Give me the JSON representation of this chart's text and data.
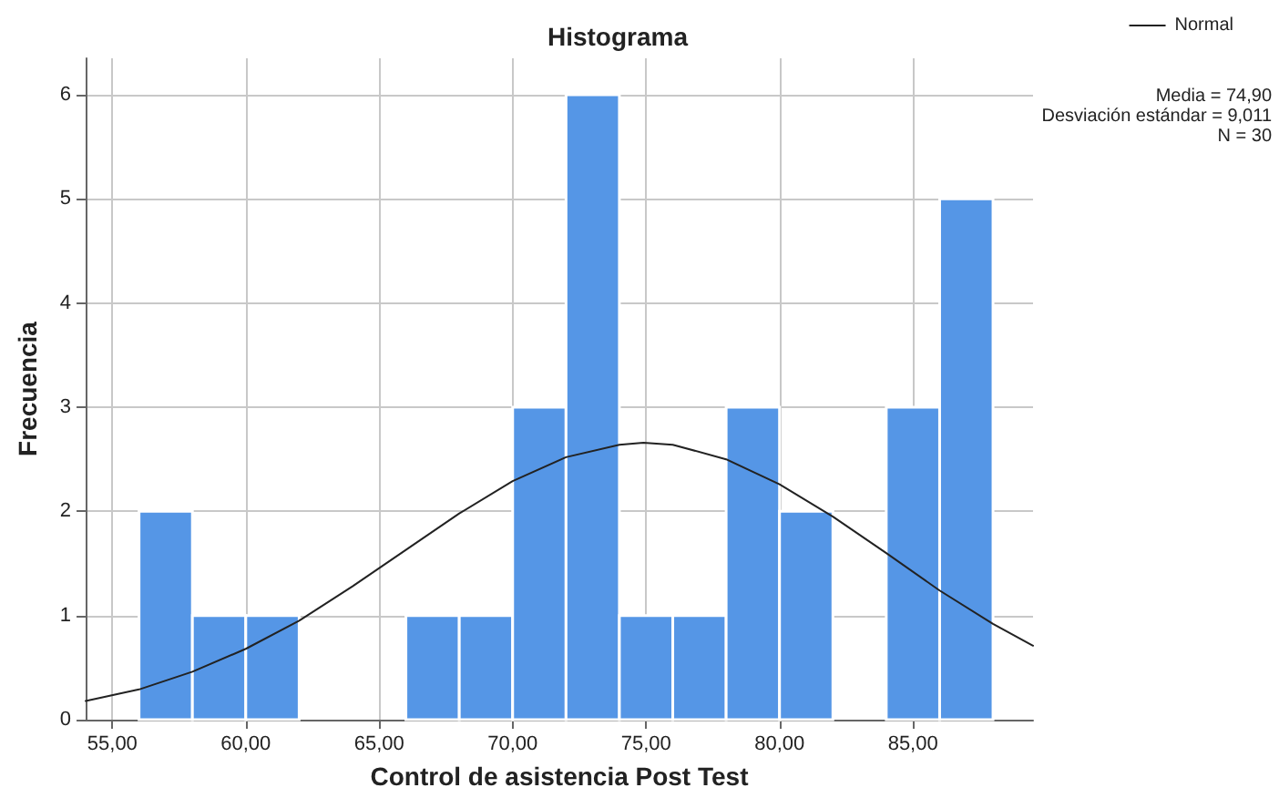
{
  "chart_data": {
    "type": "histogram",
    "title": "Histograma",
    "xlabel": "Control de asistencia Post Test",
    "ylabel": "Frecuencia",
    "annotations": [
      "Media = 74,90",
      "Desviación estándar = 9,011",
      "N = 30"
    ],
    "series": [
      {
        "type": "histogram",
        "color": "#5596e6",
        "bins": [
          56,
          58,
          60,
          62,
          64,
          66,
          68,
          70,
          72,
          74,
          76,
          78,
          80,
          82,
          84,
          86,
          88
        ],
        "values": [
          2,
          1,
          1,
          0,
          0,
          1,
          1,
          3,
          6,
          1,
          1,
          3,
          2,
          0,
          3,
          5
        ]
      },
      {
        "type": "line",
        "name": "Normal",
        "color": "#222222",
        "x": [
          54,
          56,
          58,
          60,
          62,
          64,
          66,
          68,
          70,
          72,
          74,
          74.9,
          76,
          78,
          80,
          82,
          84,
          86,
          88,
          89.5
        ],
        "values": [
          0.18,
          0.29,
          0.46,
          0.68,
          0.95,
          1.28,
          1.63,
          1.98,
          2.29,
          2.52,
          2.64,
          2.66,
          2.64,
          2.5,
          2.26,
          1.95,
          1.6,
          1.24,
          0.92,
          0.71
        ]
      }
    ],
    "xlim": [
      54,
      89.5
    ],
    "xticks": [
      {
        "value": 55,
        "label": "55,00"
      },
      {
        "value": 60,
        "label": "60,00"
      },
      {
        "value": 65,
        "label": "65,00"
      },
      {
        "value": 70,
        "label": "70,00"
      },
      {
        "value": 75,
        "label": "75,00"
      },
      {
        "value": 80,
        "label": "80,00"
      },
      {
        "value": 85,
        "label": "85,00"
      }
    ],
    "ylim": [
      0,
      6.35
    ],
    "yticks": [
      0,
      1,
      2,
      3,
      4,
      5,
      6
    ],
    "grid": true,
    "legend": "top right",
    "line_style": "solid",
    "marker": "none"
  }
}
